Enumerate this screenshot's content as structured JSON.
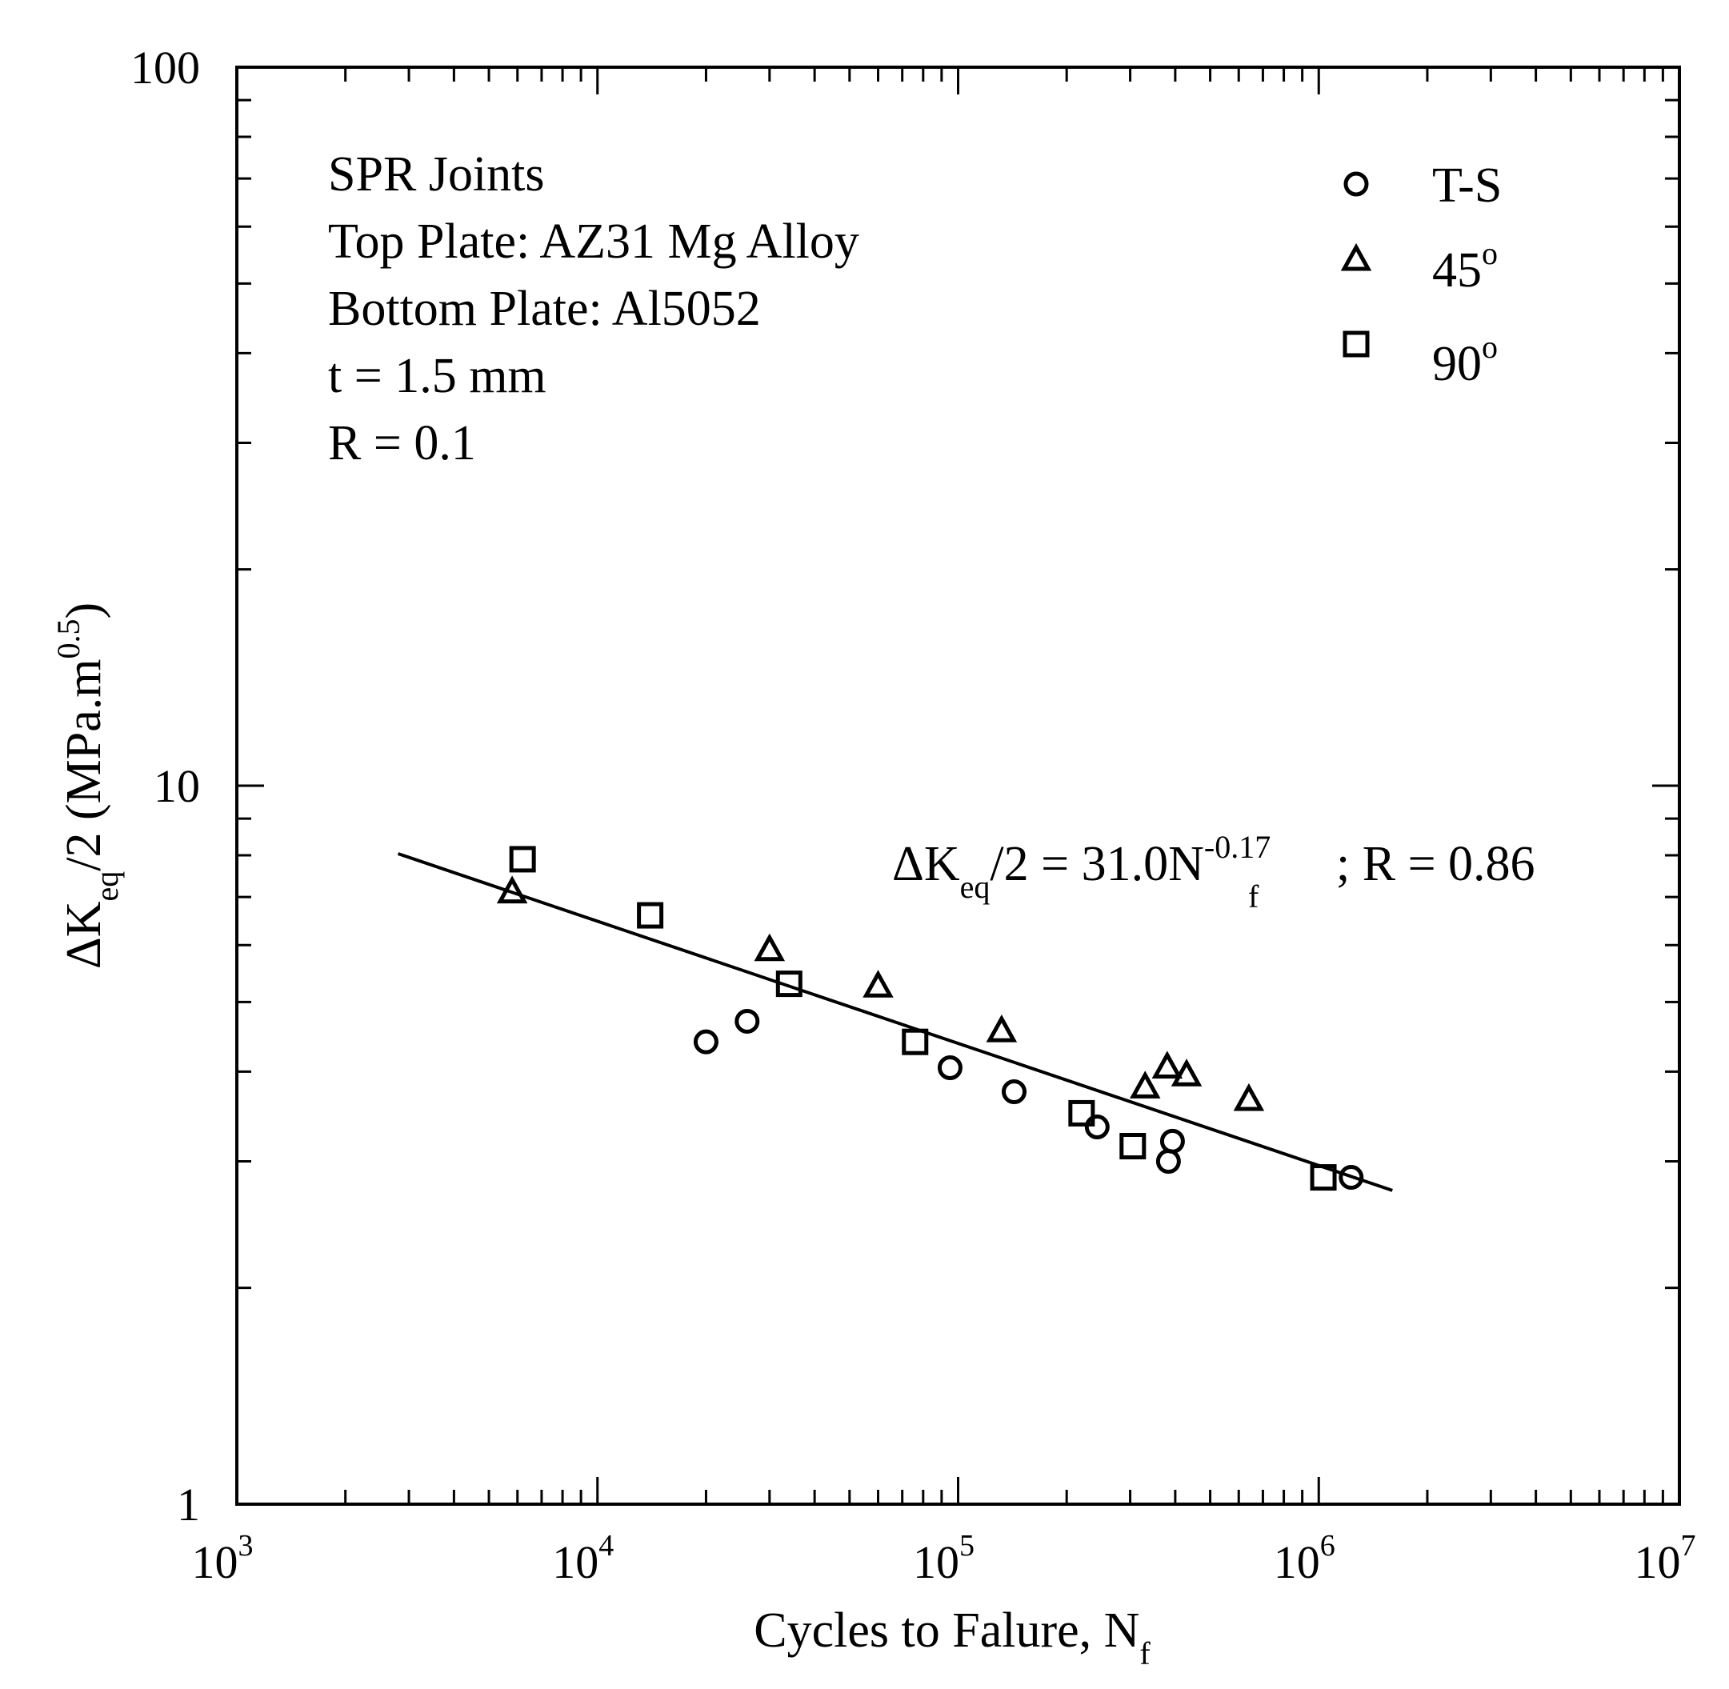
{
  "chart_data": {
    "type": "scatter",
    "x_scale": "log",
    "y_scale": "log",
    "xlim": [
      1000,
      10000000
    ],
    "ylim": [
      1,
      100
    ],
    "x_ticks": [
      {
        "value": 1000,
        "base": "10",
        "exp": "3"
      },
      {
        "value": 10000,
        "base": "10",
        "exp": "4"
      },
      {
        "value": 100000,
        "base": "10",
        "exp": "5"
      },
      {
        "value": 1000000,
        "base": "10",
        "exp": "6"
      },
      {
        "value": 10000000,
        "base": "10",
        "exp": "7"
      }
    ],
    "y_ticks": [
      {
        "value": 1,
        "label": "1"
      },
      {
        "value": 10,
        "label": "10"
      },
      {
        "value": 100,
        "label": "100"
      }
    ],
    "xlabel": {
      "main": "Cycles to Falure, N",
      "sub": "f"
    },
    "ylabel": {
      "delta": "ΔK",
      "sub": "eq",
      "mid": "/2 (MPa.m",
      "sup": "0.5",
      "end": ")"
    },
    "annotations": [
      "SPR Joints",
      "Top Plate: AZ31 Mg Alloy",
      "Bottom Plate: Al5052",
      "t = 1.5 mm",
      "R = 0.1"
    ],
    "equation": {
      "p1": "ΔK",
      "sub1": "eq",
      "p2": "/2 = 31.0N",
      "sup": "-0.17",
      "sub2": "f",
      "p3": "; R = 0.86"
    },
    "fit": {
      "coef": 31.0,
      "exp": -0.17,
      "x_range": [
        2800,
        1600000
      ]
    },
    "legend_position": "top-right",
    "series": [
      {
        "name": "T-S",
        "label": "T-S",
        "marker": "circle",
        "points": [
          {
            "x": 20000,
            "y": 4.4
          },
          {
            "x": 26000,
            "y": 4.7
          },
          {
            "x": 95000,
            "y": 4.05
          },
          {
            "x": 143000,
            "y": 3.75
          },
          {
            "x": 243000,
            "y": 3.35
          },
          {
            "x": 383000,
            "y": 3.0
          },
          {
            "x": 393000,
            "y": 3.2
          },
          {
            "x": 1230000,
            "y": 2.85
          }
        ]
      },
      {
        "name": "45°",
        "label": "45",
        "label_sup": "o",
        "marker": "triangle",
        "points": [
          {
            "x": 5800,
            "y": 7.1
          },
          {
            "x": 30000,
            "y": 5.9
          },
          {
            "x": 60000,
            "y": 5.25
          },
          {
            "x": 132000,
            "y": 4.55
          },
          {
            "x": 330000,
            "y": 3.8
          },
          {
            "x": 380000,
            "y": 4.05
          },
          {
            "x": 430000,
            "y": 3.95
          },
          {
            "x": 640000,
            "y": 3.65
          }
        ]
      },
      {
        "name": "90°",
        "label": "90",
        "label_sup": "o",
        "marker": "square",
        "points": [
          {
            "x": 6200,
            "y": 7.9
          },
          {
            "x": 14000,
            "y": 6.6
          },
          {
            "x": 34000,
            "y": 5.3
          },
          {
            "x": 76000,
            "y": 4.4
          },
          {
            "x": 220000,
            "y": 3.5
          },
          {
            "x": 305000,
            "y": 3.15
          },
          {
            "x": 1030000,
            "y": 2.85
          }
        ]
      }
    ]
  }
}
